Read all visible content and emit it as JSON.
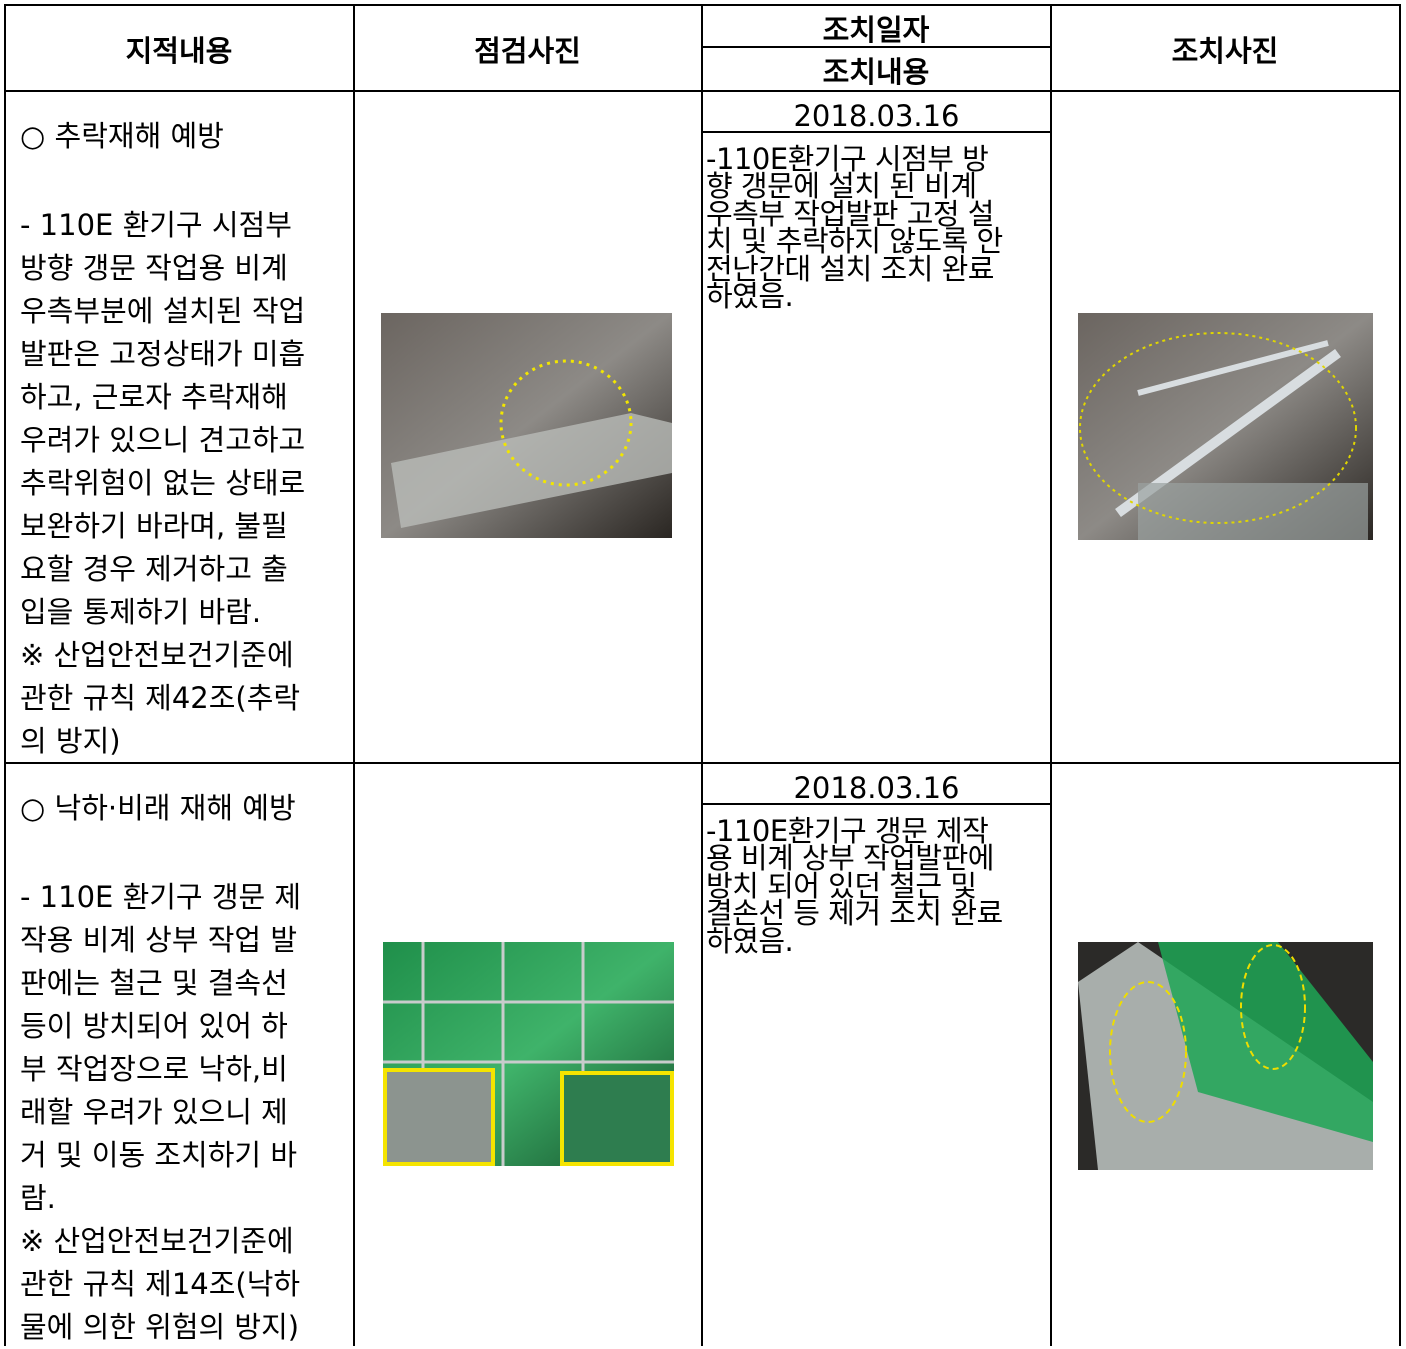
{
  "table": {
    "header": {
      "finding": "지적내용",
      "inspection_photo": "점검사진",
      "action_date": "조치일자",
      "action_content": "조치내용",
      "action_photo": "조치사진"
    },
    "rows": [
      {
        "finding_title": "○ 추락재해 예방",
        "finding_lines": [
          "- 110E 환기구 시점부",
          "방향 갱문 작업용 비계",
          "우측부분에 설치된 작업",
          "발판은 고정상태가 미흡",
          "하고, 근로자 추락재해",
          "우려가 있으니 견고하고",
          "추락위험이 없는 상태로",
          "보완하기 바라며, 불필",
          "요할 경우 제거하고 출",
          "입을 통제하기 바람.",
          "※ 산업안전보건기준에",
          "관한 규칙 제42조(추락",
          "의 방지)"
        ],
        "date": "2018.03.16",
        "action_lines": [
          "-110E환기구 시점부 방",
          "향 갱문에 설치 된 비계",
          "우측부 작업발판 고정 설",
          "치 및 추락하지 않도록 안",
          "전난간대 설치 조치 완료",
          "하였음."
        ]
      },
      {
        "finding_title": "○ 낙하·비래 재해 예방",
        "finding_lines": [
          "- 110E 환기구 갱문 제",
          "작용 비계 상부 작업 발",
          "판에는 철근 및 결속선",
          "등이 방치되어 있어 하",
          "부 작업장으로 낙하,비",
          "래할 우려가 있으니 제",
          "거 및 이동 조치하기 바",
          "람.",
          "※ 산업안전보건기준에",
          "관한 규칙 제14조(낙하",
          "물에 의한 위험의 방지)"
        ],
        "date": "2018.03.16",
        "action_lines": [
          "-110E환기구 갱문 제작",
          "용 비계 상부 작업발판에",
          "방치 되어 있던 철근 및",
          "결손선 등 제거 조치 완료",
          "하였음."
        ]
      }
    ]
  }
}
